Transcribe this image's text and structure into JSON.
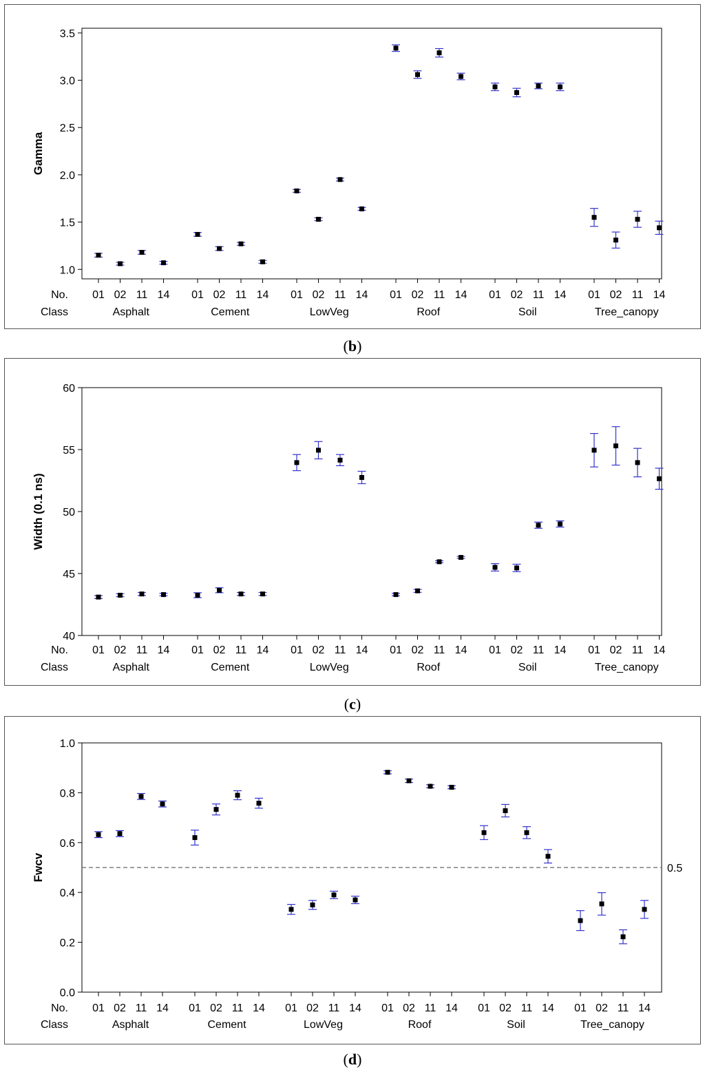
{
  "chart_data": [
    {
      "type": "scatter",
      "panel_label": "b",
      "ylabel": "Gamma",
      "ylim": [
        0.9,
        3.55
      ],
      "yticks": [
        "1.0",
        "1.5",
        "2.0",
        "2.5",
        "3.0",
        "3.5"
      ],
      "row_labels": {
        "no": "No.",
        "class": "Class"
      },
      "classes": [
        "Asphalt",
        "Cement",
        "LowVeg",
        "Roof",
        "Soil",
        "Tree_canopy"
      ],
      "numbers": [
        "01",
        "02",
        "11",
        "14"
      ],
      "reference_line": null,
      "values": [
        [
          [
            1.15,
            0.02
          ],
          [
            1.06,
            0.015
          ],
          [
            1.18,
            0.02
          ],
          [
            1.07,
            0.015
          ]
        ],
        [
          [
            1.37,
            0.02
          ],
          [
            1.22,
            0.02
          ],
          [
            1.27,
            0.015
          ],
          [
            1.08,
            0.015
          ]
        ],
        [
          [
            1.83,
            0.015
          ],
          [
            1.53,
            0.015
          ],
          [
            1.95,
            0.015
          ],
          [
            1.64,
            0.015
          ]
        ],
        [
          [
            3.34,
            0.035
          ],
          [
            3.06,
            0.04
          ],
          [
            3.29,
            0.045
          ],
          [
            3.04,
            0.035
          ]
        ],
        [
          [
            2.93,
            0.04
          ],
          [
            2.87,
            0.045
          ],
          [
            2.94,
            0.03
          ],
          [
            2.93,
            0.04
          ]
        ],
        [
          [
            1.55,
            0.095
          ],
          [
            1.31,
            0.085
          ],
          [
            1.53,
            0.085
          ],
          [
            1.44,
            0.07
          ]
        ]
      ]
    },
    {
      "type": "scatter",
      "panel_label": "c",
      "ylabel": "Width (0.1 ns)",
      "ylim": [
        40,
        60
      ],
      "yticks": [
        "40",
        "45",
        "50",
        "55",
        "60"
      ],
      "row_labels": {
        "no": "No.",
        "class": "Class"
      },
      "classes": [
        "Asphalt",
        "Cement",
        "LowVeg",
        "Roof",
        "Soil",
        "Tree_canopy"
      ],
      "numbers": [
        "01",
        "02",
        "11",
        "14"
      ],
      "reference_line": null,
      "values": [
        [
          [
            43.1,
            0.12
          ],
          [
            43.25,
            0.12
          ],
          [
            43.35,
            0.12
          ],
          [
            43.3,
            0.1
          ]
        ],
        [
          [
            43.25,
            0.2
          ],
          [
            43.65,
            0.2
          ],
          [
            43.35,
            0.12
          ],
          [
            43.35,
            0.12
          ]
        ],
        [
          [
            53.95,
            0.65
          ],
          [
            54.95,
            0.7
          ],
          [
            54.15,
            0.45
          ],
          [
            52.75,
            0.5
          ]
        ],
        [
          [
            43.3,
            0.1
          ],
          [
            43.6,
            0.12
          ],
          [
            45.95,
            0.08
          ],
          [
            46.3,
            0.08
          ]
        ],
        [
          [
            45.5,
            0.3
          ],
          [
            45.45,
            0.3
          ],
          [
            48.9,
            0.25
          ],
          [
            49.0,
            0.25
          ]
        ],
        [
          [
            54.95,
            1.35
          ],
          [
            55.3,
            1.55
          ],
          [
            53.95,
            1.15
          ],
          [
            52.65,
            0.85
          ]
        ]
      ]
    },
    {
      "type": "scatter",
      "panel_label": "d",
      "ylabel": "Fwcv",
      "ylim": [
        0.0,
        1.0
      ],
      "yticks": [
        "0.0",
        "0.2",
        "0.4",
        "0.6",
        "0.8",
        "1.0"
      ],
      "row_labels": {
        "no": "No.",
        "class": "Class"
      },
      "classes": [
        "Asphalt",
        "Cement",
        "LowVeg",
        "Roof",
        "Soil",
        "Tree_canopy"
      ],
      "numbers": [
        "01",
        "02",
        "11",
        "14"
      ],
      "reference_line": {
        "value": 0.5,
        "label": "0.5"
      },
      "values": [
        [
          [
            0.632,
            0.012
          ],
          [
            0.636,
            0.012
          ],
          [
            0.785,
            0.012
          ],
          [
            0.755,
            0.012
          ]
        ],
        [
          [
            0.62,
            0.03
          ],
          [
            0.733,
            0.022
          ],
          [
            0.79,
            0.018
          ],
          [
            0.758,
            0.02
          ]
        ],
        [
          [
            0.332,
            0.02
          ],
          [
            0.35,
            0.018
          ],
          [
            0.39,
            0.015
          ],
          [
            0.37,
            0.015
          ]
        ],
        [
          [
            0.882,
            0.006
          ],
          [
            0.848,
            0.007
          ],
          [
            0.826,
            0.006
          ],
          [
            0.822,
            0.006
          ]
        ],
        [
          [
            0.64,
            0.028
          ],
          [
            0.728,
            0.025
          ],
          [
            0.64,
            0.024
          ],
          [
            0.545,
            0.027
          ]
        ],
        [
          [
            0.287,
            0.04
          ],
          [
            0.354,
            0.045
          ],
          [
            0.222,
            0.028
          ],
          [
            0.332,
            0.036
          ]
        ]
      ]
    }
  ]
}
